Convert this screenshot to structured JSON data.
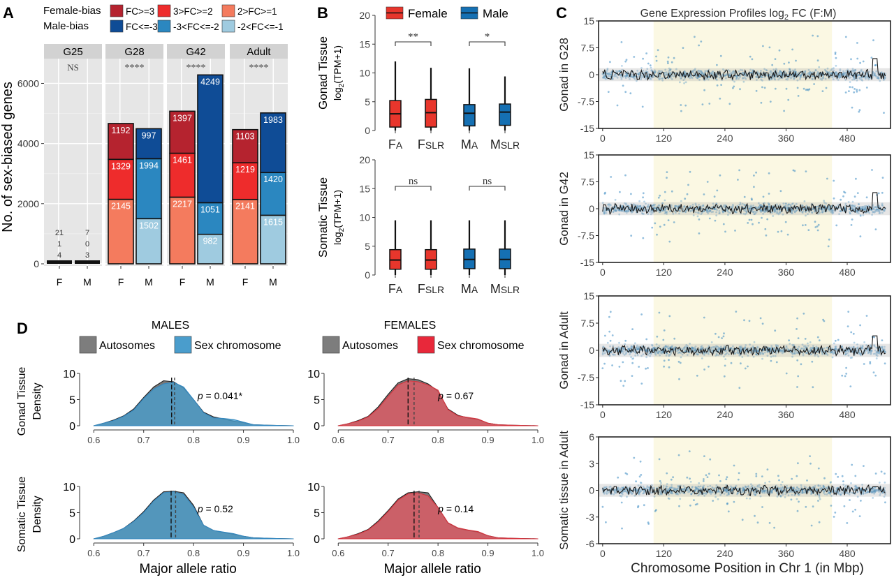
{
  "panels": {
    "A": "A",
    "B": "B",
    "C": "C",
    "D": "D"
  },
  "chart_data": [
    {
      "id": "A",
      "type": "bar",
      "stacked": true,
      "legend_rows": [
        {
          "label": "Female-bias",
          "items": [
            "FC>=3",
            "3>FC>=2",
            "2>FC>=1"
          ]
        },
        {
          "label": "Male-bias",
          "items": [
            "FC<=-3",
            "-3<FC<=-2",
            "-2<FC<=-1"
          ]
        }
      ],
      "colors": {
        "F3": "#b5232f",
        "F2": "#ee2c2c",
        "F1": "#f47b5e",
        "M3": "#0f4c96",
        "M2": "#2b87c0",
        "M1": "#9fcbe0"
      },
      "ylabel": "No. of sex-biased genes",
      "ylim": [
        0,
        6800
      ],
      "yticks": [
        0,
        2000,
        4000,
        6000
      ],
      "grid": true,
      "facets": [
        {
          "name": "G25",
          "sig": "NS",
          "bars": [
            {
              "sex": "F",
              "segments": [
                4,
                1,
                21
              ],
              "labels": [
                "4",
                "1",
                "21"
              ]
            },
            {
              "sex": "M",
              "segments": [
                3,
                0,
                7
              ],
              "labels": [
                "3",
                "0",
                "7"
              ]
            }
          ]
        },
        {
          "name": "G28",
          "sig": "****",
          "bars": [
            {
              "sex": "F",
              "segments": [
                2145,
                1329,
                1192
              ],
              "labels": [
                "2145",
                "1329",
                "1192"
              ]
            },
            {
              "sex": "M",
              "segments": [
                1502,
                1994,
                997
              ],
              "labels": [
                "1502",
                "1994",
                "997"
              ]
            }
          ]
        },
        {
          "name": "G42",
          "sig": "****",
          "bars": [
            {
              "sex": "F",
              "segments": [
                2217,
                1461,
                1397
              ],
              "labels": [
                "2217",
                "1461",
                "1397"
              ]
            },
            {
              "sex": "M",
              "segments": [
                982,
                1051,
                4249
              ],
              "labels": [
                "982",
                "1051",
                "4249"
              ]
            }
          ]
        },
        {
          "name": "Adult",
          "sig": "****",
          "bars": [
            {
              "sex": "F",
              "segments": [
                2141,
                1219,
                1103
              ],
              "labels": [
                "2141",
                "1219",
                "1103"
              ]
            },
            {
              "sex": "M",
              "segments": [
                1615,
                1420,
                1983
              ],
              "labels": [
                "1615",
                "1420",
                "1983"
              ]
            }
          ]
        }
      ]
    },
    {
      "id": "B",
      "type": "box",
      "legend": [
        {
          "name": "Female",
          "color": "#e8362c"
        },
        {
          "name": "Male",
          "color": "#1570b3"
        }
      ],
      "categories": [
        "FA",
        "FSLR",
        "MA",
        "MSLR"
      ],
      "category_parts": [
        [
          "F",
          "A"
        ],
        [
          "F",
          "SLR"
        ],
        [
          "M",
          "A"
        ],
        [
          "M",
          "SLR"
        ]
      ],
      "box_colors": [
        "#e8362c",
        "#e8362c",
        "#1570b3",
        "#1570b3"
      ],
      "ylim": [
        0,
        20
      ],
      "yticks": [
        0,
        5,
        10,
        15,
        20
      ],
      "ylabel_unit": "log2(TPM+1)",
      "subplots": [
        {
          "ylabel": "Gonad Tissue",
          "sig": [
            "**",
            "*"
          ],
          "boxes": [
            {
              "min": 0,
              "q1": 0.6,
              "median": 2.9,
              "q3": 5.2,
              "max": 12.0
            },
            {
              "min": 0,
              "q1": 0.6,
              "median": 3.1,
              "q3": 5.4,
              "max": 10.9
            },
            {
              "min": 0,
              "q1": 0.8,
              "median": 3.0,
              "q3": 4.5,
              "max": 10.8
            },
            {
              "min": 0,
              "q1": 0.9,
              "median": 3.2,
              "q3": 4.6,
              "max": 9.4
            }
          ]
        },
        {
          "ylabel": "Somatic Tissue",
          "sig": [
            "ns",
            "ns"
          ],
          "boxes": [
            {
              "min": 0,
              "q1": 1.0,
              "median": 2.6,
              "q3": 4.4,
              "max": 9.5
            },
            {
              "min": 0,
              "q1": 1.0,
              "median": 2.6,
              "q3": 4.4,
              "max": 9.5
            },
            {
              "min": 0,
              "q1": 1.1,
              "median": 2.7,
              "q3": 4.5,
              "max": 9.5
            },
            {
              "min": 0,
              "q1": 1.1,
              "median": 2.7,
              "q3": 4.5,
              "max": 9.5
            }
          ]
        }
      ]
    },
    {
      "id": "C",
      "type": "scatter",
      "title": "Gene Expression Profiles log2 FC (F:M)",
      "title_parts": [
        "Gene Expression Profiles log",
        "2",
        " FC (F:M)"
      ],
      "xlabel": "Chromosome Position in Chr 1 (in Mbp)",
      "xticks": [
        0,
        120,
        240,
        360,
        480
      ],
      "xlim": [
        -8,
        565
      ],
      "shaded_region": [
        100,
        450
      ],
      "point_color": "#3b8bc2",
      "line_color": "#1a1a1a",
      "subplots": [
        {
          "ylabel": "Gonad in G28",
          "ylim": [
            -15,
            15
          ],
          "yticks": [
            "-15",
            "-7.5",
            "0",
            "7.5",
            "15"
          ],
          "yvals": [
            -15,
            -7.5,
            0,
            7.5,
            15
          ],
          "peak": 4.5
        },
        {
          "ylabel": "Gonad in G42",
          "ylim": [
            -15,
            15
          ],
          "yticks": [
            "-15",
            "-7.5",
            "0",
            "7.5",
            "15"
          ],
          "yvals": [
            -15,
            -7.5,
            0,
            7.5,
            15
          ],
          "peak": 4.5
        },
        {
          "ylabel": "Gonad in Adult",
          "ylim": [
            -15,
            15
          ],
          "yticks": [
            "-15",
            "-7.5",
            "0",
            "7.5",
            "15"
          ],
          "yvals": [
            -15,
            -7.5,
            0,
            7.5,
            15
          ],
          "peak": 4.0
        },
        {
          "ylabel": "Somatic tissue in Adult",
          "ylim": [
            -6,
            6
          ],
          "yticks": [
            "-6",
            "-3",
            "0",
            "3",
            "6"
          ],
          "yvals": [
            -6,
            -3,
            0,
            3,
            6
          ],
          "peak": 1.0
        }
      ]
    },
    {
      "id": "D",
      "type": "area",
      "xlabel": "Major allele ratio",
      "xticks": [
        "0.6",
        "0.7",
        "0.8",
        "0.9",
        "1.0"
      ],
      "xvals": [
        0.6,
        0.7,
        0.8,
        0.9,
        1.0
      ],
      "xlim": [
        0.58,
        1.0
      ],
      "ylim": [
        0,
        10
      ],
      "yticks": [
        0,
        5,
        10
      ],
      "ylabel_unit": "Density",
      "row_labels": [
        "Gonad Tissue",
        "Somatic Tissue"
      ],
      "columns": [
        {
          "title": "MALES",
          "legend": [
            {
              "name": "Autosomes",
              "color": "#7d7d7d"
            },
            {
              "name": "Sex chromosome",
              "color": "#4a9dcc"
            }
          ],
          "auto_fill": "rgba(95,95,95,0.85)",
          "sex_fill": "rgba(74,157,204,0.8)",
          "sex_stroke": "#3488c0"
        },
        {
          "title": "FEMALES",
          "legend": [
            {
              "name": "Autosomes",
              "color": "#7d7d7d"
            },
            {
              "name": "Sex chromosome",
              "color": "#e8283a"
            }
          ],
          "auto_fill": "rgba(95,95,95,0.85)",
          "sex_fill": "rgba(236,88,98,0.72)",
          "sex_stroke": "#d4343e"
        }
      ],
      "densities_x": [
        0.6,
        0.62,
        0.64,
        0.66,
        0.68,
        0.7,
        0.72,
        0.74,
        0.76,
        0.78,
        0.8,
        0.82,
        0.84,
        0.86,
        0.88,
        0.9,
        0.92,
        0.95,
        1.0
      ],
      "subplots": [
        {
          "row": 0,
          "col": 0,
          "p_value": "= 0.041*",
          "means": [
            0.756,
            0.762
          ],
          "autosome": [
            0.0,
            0.5,
            1.1,
            1.9,
            3.2,
            5.4,
            7.4,
            8.6,
            8.4,
            7.2,
            5.0,
            2.6,
            1.7,
            1.3,
            0.9,
            0.6,
            0.2,
            0.1,
            0.0
          ],
          "sex": [
            0.0,
            0.5,
            1.0,
            1.8,
            3.0,
            5.2,
            7.0,
            8.0,
            8.3,
            7.4,
            5.0,
            2.5,
            1.5,
            1.4,
            1.2,
            0.7,
            0.2,
            0.1,
            0.0
          ]
        },
        {
          "row": 0,
          "col": 1,
          "p_value": "= 0.67",
          "means": [
            0.74,
            0.752
          ],
          "autosome": [
            0.0,
            0.4,
            1.0,
            1.8,
            3.6,
            6.0,
            8.2,
            9.0,
            8.8,
            8.0,
            6.6,
            3.2,
            2.0,
            1.5,
            1.2,
            0.5,
            0.2,
            0.1,
            0.0
          ],
          "sex": [
            0.0,
            0.4,
            0.9,
            1.7,
            3.3,
            5.6,
            7.8,
            8.6,
            8.4,
            7.8,
            6.8,
            3.1,
            1.9,
            1.6,
            1.3,
            0.5,
            0.2,
            0.1,
            0.0
          ]
        },
        {
          "row": 1,
          "col": 0,
          "p_value": "= 0.52",
          "means": [
            0.755,
            0.764
          ],
          "autosome": [
            0.0,
            0.5,
            1.2,
            2.0,
            3.4,
            5.2,
            7.4,
            9.0,
            9.1,
            8.8,
            6.4,
            2.6,
            1.6,
            1.2,
            0.9,
            0.5,
            0.2,
            0.1,
            0.0
          ],
          "sex": [
            0.0,
            0.5,
            1.2,
            2.0,
            3.3,
            5.0,
            7.2,
            8.8,
            9.0,
            8.5,
            6.1,
            2.6,
            1.6,
            1.3,
            1.0,
            0.5,
            0.2,
            0.1,
            0.0
          ]
        },
        {
          "row": 1,
          "col": 1,
          "p_value": "= 0.14",
          "means": [
            0.752,
            0.762
          ],
          "autosome": [
            0.0,
            0.4,
            1.0,
            1.8,
            3.4,
            5.4,
            7.6,
            8.8,
            9.0,
            8.8,
            6.0,
            3.0,
            2.0,
            1.6,
            1.3,
            0.6,
            0.2,
            0.1,
            0.0
          ],
          "sex": [
            0.0,
            0.4,
            0.9,
            1.7,
            3.2,
            5.2,
            7.4,
            8.6,
            8.8,
            8.2,
            6.0,
            3.1,
            2.1,
            1.7,
            1.4,
            0.6,
            0.2,
            0.1,
            0.0
          ]
        }
      ]
    }
  ]
}
